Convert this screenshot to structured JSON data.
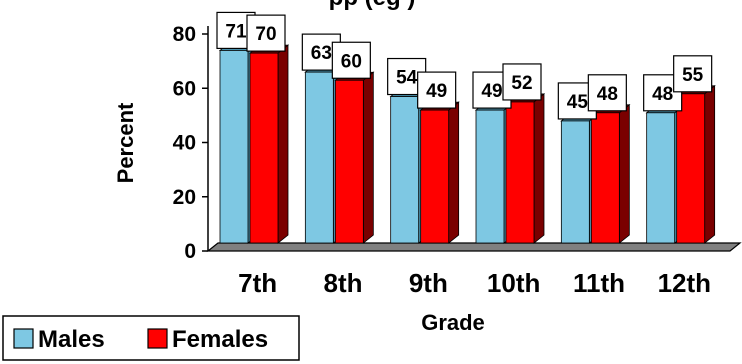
{
  "chart_data": {
    "type": "bar",
    "title_visible_fragment": "pp          (eg   )",
    "categories": [
      "7th",
      "8th",
      "9th",
      "10th",
      "11th",
      "12th"
    ],
    "series": [
      {
        "name": "Males",
        "values": [
          71,
          63,
          54,
          49,
          45,
          48
        ],
        "color": "#7EC8E3",
        "side_color": "#4A93AE",
        "label_bg": "#ffffff"
      },
      {
        "name": "Females",
        "values": [
          70,
          60,
          49,
          52,
          48,
          55
        ],
        "color": "#FF0000",
        "side_color": "#7A0000",
        "label_bg": "#ffffff"
      }
    ],
    "xlabel": "Grade",
    "ylabel": "Percent",
    "ylim": [
      0,
      80
    ],
    "yticks": [
      0,
      20,
      40,
      60,
      80
    ],
    "grid": false,
    "legend_position": "bottom-left",
    "floor_color": "#808080"
  }
}
